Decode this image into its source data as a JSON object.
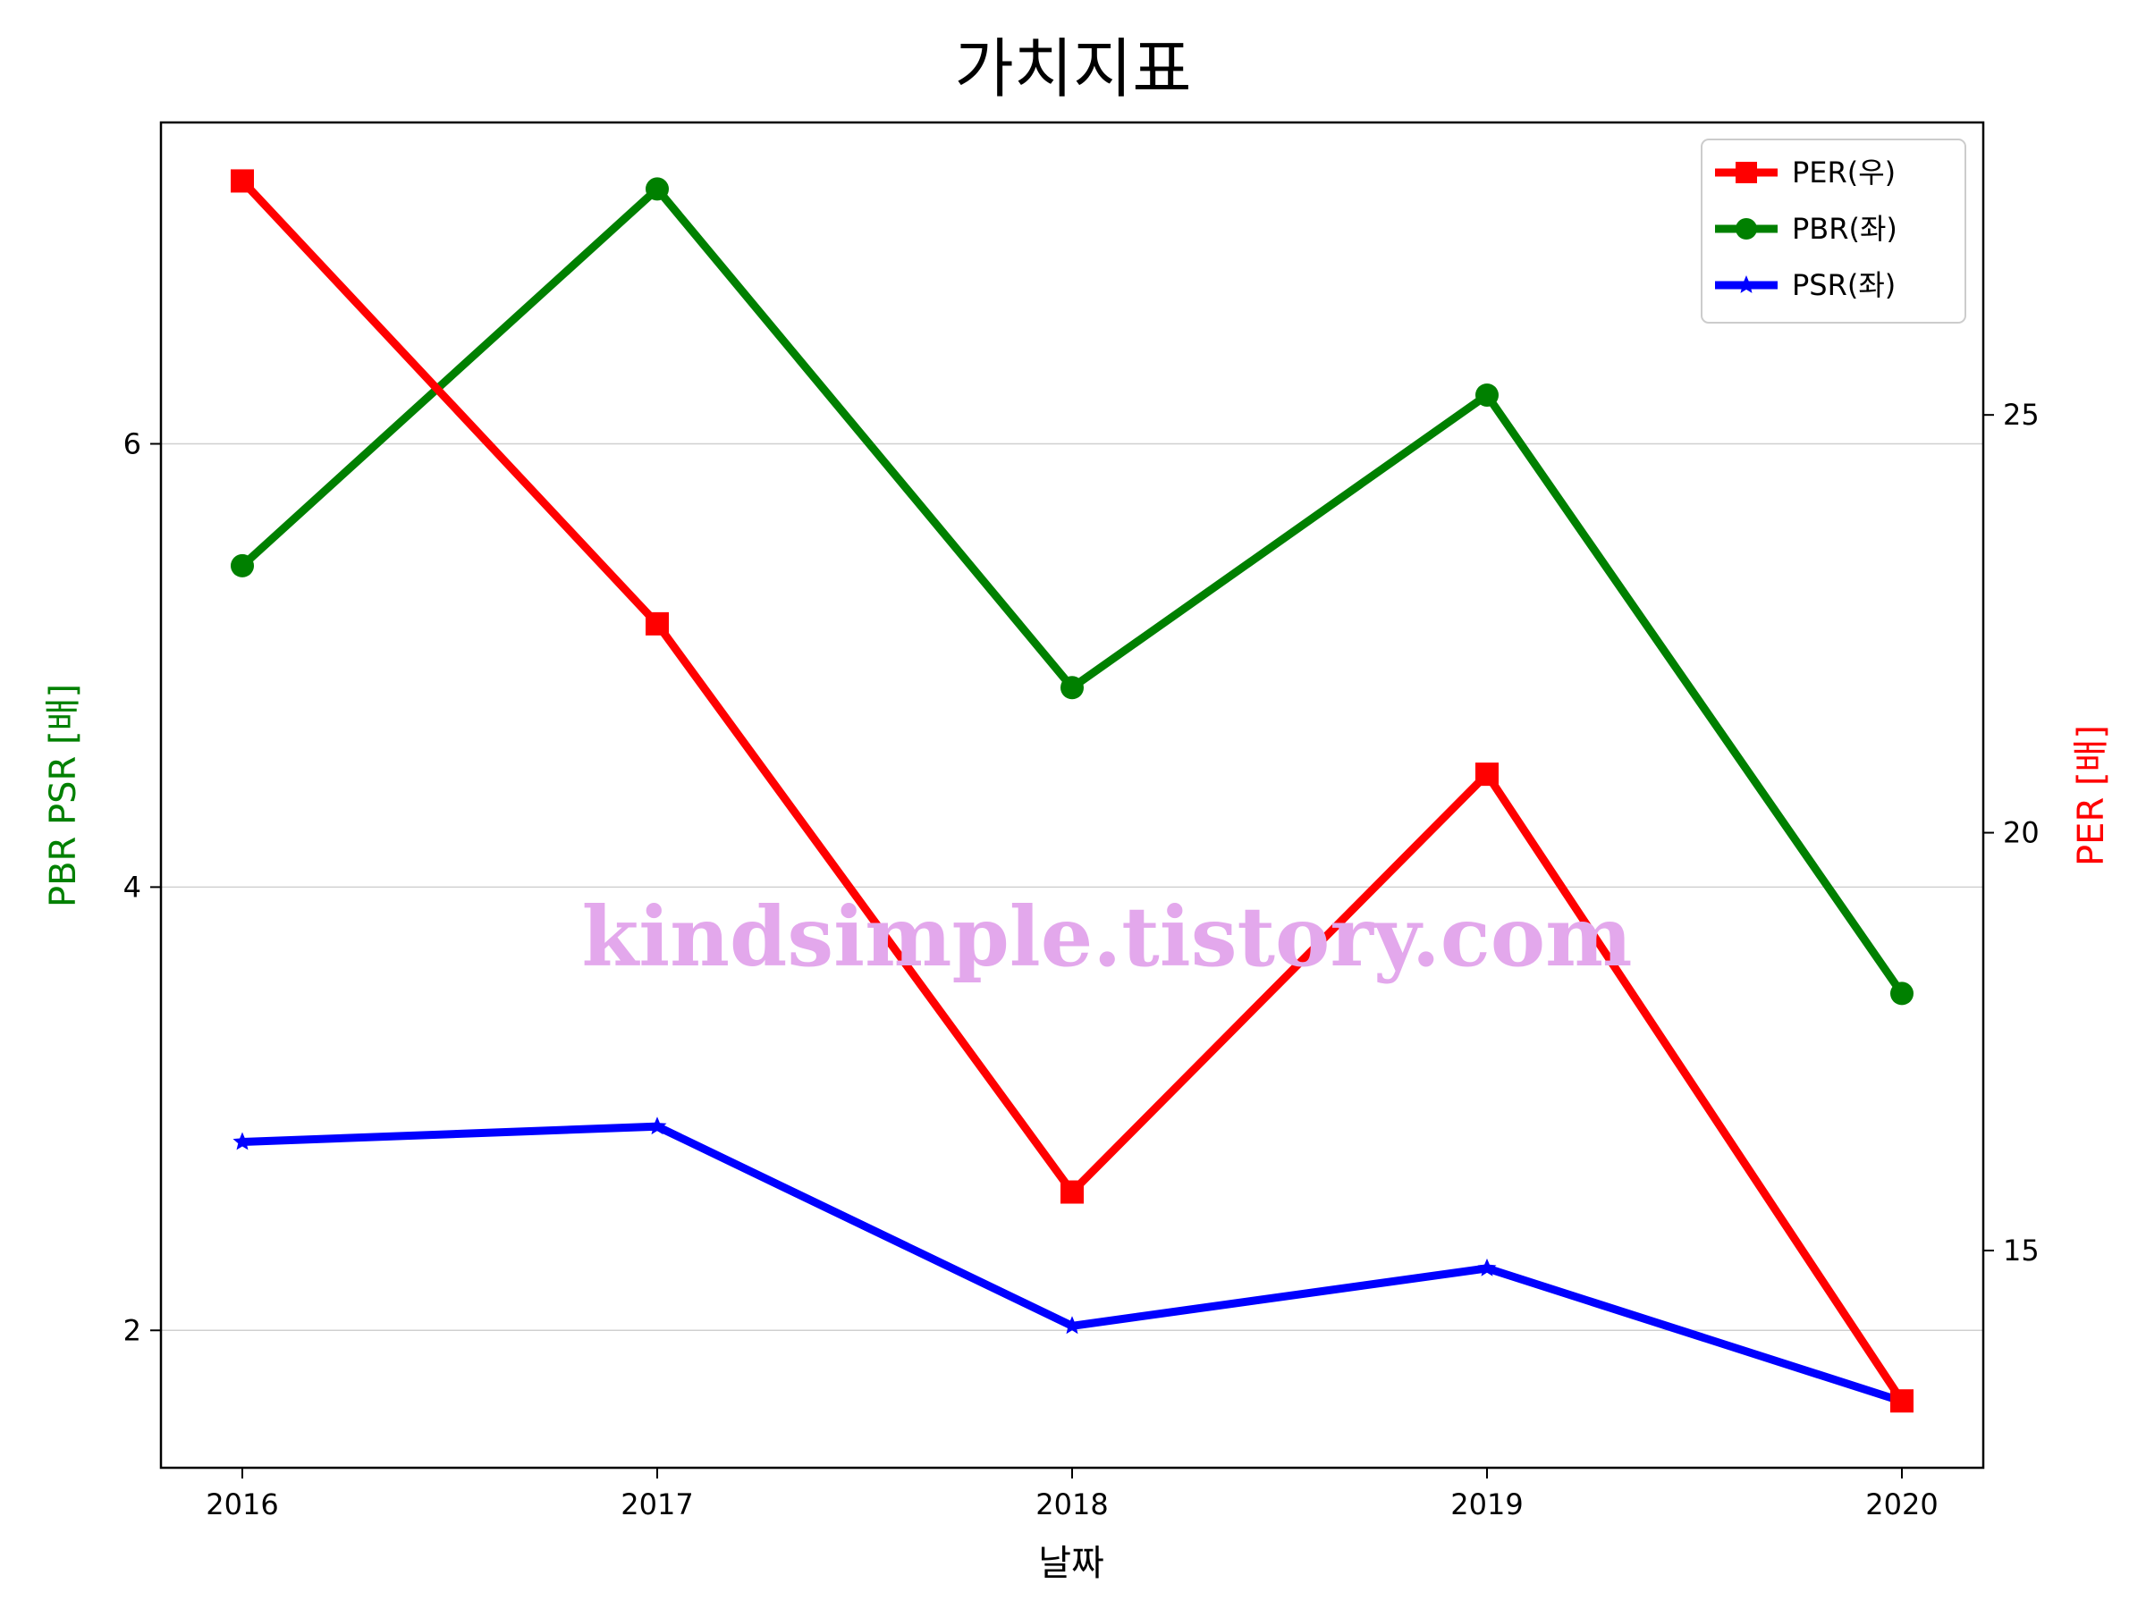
{
  "chart_data": {
    "type": "line",
    "title": "가치지표",
    "xlabel": "날짜",
    "ylabel_left": "PBR PSR [배]",
    "ylabel_right": "PER [배]",
    "categories": [
      "2016",
      "2017",
      "2018",
      "2019",
      "2020"
    ],
    "y_left": {
      "ticks": [
        2,
        4,
        6
      ],
      "tick_labels": [
        "2",
        "4",
        "6"
      ],
      "range": [
        1.38,
        7.45
      ]
    },
    "y_right": {
      "ticks": [
        15,
        20,
        25
      ],
      "tick_labels": [
        "15",
        "20",
        "25"
      ],
      "range": [
        12.4,
        28.5
      ]
    },
    "grid": "horizontal (left axis)",
    "legend_position": "top-right",
    "series": [
      {
        "name": "PER(우)",
        "axis": "right",
        "color": "#ff0000",
        "marker": "square",
        "values": [
          27.8,
          22.5,
          15.7,
          20.7,
          13.2
        ]
      },
      {
        "name": "PBR(좌)",
        "axis": "left",
        "color": "#008000",
        "marker": "circle",
        "values": [
          5.45,
          7.15,
          4.9,
          6.22,
          3.52
        ]
      },
      {
        "name": "PSR(좌)",
        "axis": "left",
        "color": "#0000ff",
        "marker": "star",
        "values": [
          2.85,
          2.92,
          2.02,
          2.28,
          1.68
        ]
      }
    ],
    "watermark": "kindsimple.tistory.com"
  }
}
